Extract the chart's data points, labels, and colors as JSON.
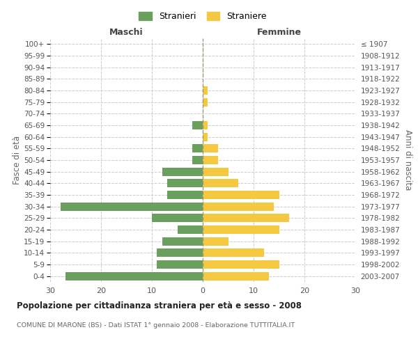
{
  "age_groups": [
    "100+",
    "95-99",
    "90-94",
    "85-89",
    "80-84",
    "75-79",
    "70-74",
    "65-69",
    "60-64",
    "55-59",
    "50-54",
    "45-49",
    "40-44",
    "35-39",
    "30-34",
    "25-29",
    "20-24",
    "15-19",
    "10-14",
    "5-9",
    "0-4"
  ],
  "birth_years": [
    "≤ 1907",
    "1908-1912",
    "1913-1917",
    "1918-1922",
    "1923-1927",
    "1928-1932",
    "1933-1937",
    "1938-1942",
    "1943-1947",
    "1948-1952",
    "1953-1957",
    "1958-1962",
    "1963-1967",
    "1968-1972",
    "1973-1977",
    "1978-1982",
    "1983-1987",
    "1988-1992",
    "1993-1997",
    "1998-2002",
    "2003-2007"
  ],
  "males": [
    0,
    0,
    0,
    0,
    0,
    0,
    0,
    2,
    0,
    2,
    2,
    8,
    7,
    7,
    28,
    10,
    5,
    8,
    9,
    9,
    27
  ],
  "females": [
    0,
    0,
    0,
    0,
    1,
    1,
    0,
    1,
    1,
    3,
    3,
    5,
    7,
    15,
    14,
    17,
    15,
    5,
    12,
    15,
    13
  ],
  "male_color": "#6a9f5e",
  "female_color": "#f5c842",
  "background_color": "#ffffff",
  "grid_color": "#cccccc",
  "grid_linestyle": "--",
  "title": "Popolazione per cittadinanza straniera per età e sesso - 2008",
  "subtitle": "COMUNE DI MARONE (BS) - Dati ISTAT 1° gennaio 2008 - Elaborazione TUTTITALIA.IT",
  "ylabel_left": "Fasce di età",
  "ylabel_right": "Anni di nascita",
  "xlabel_left": "Maschi",
  "xlabel_right": "Femmine",
  "legend_stranieri": "Stranieri",
  "legend_straniere": "Straniere",
  "xlim": 30,
  "bar_height": 0.72
}
